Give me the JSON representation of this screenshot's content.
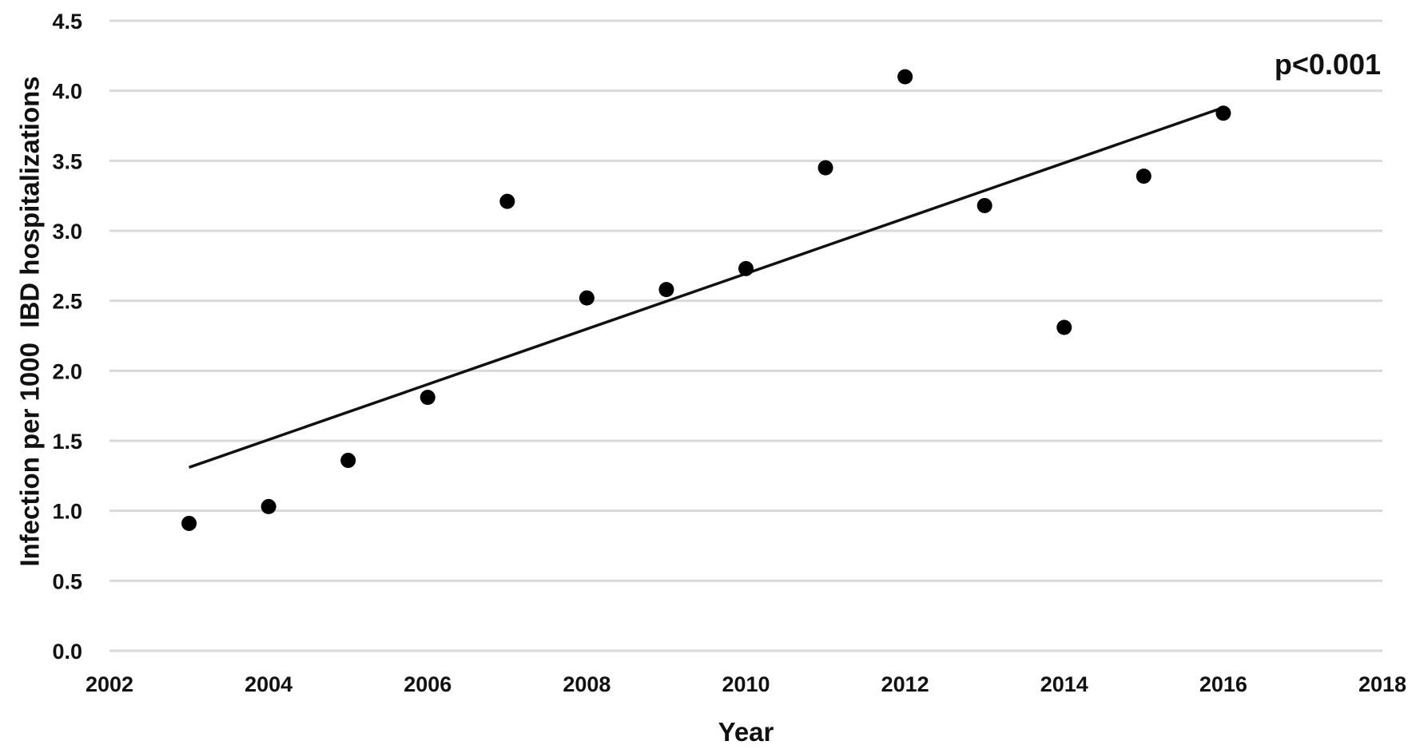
{
  "chart_data": {
    "type": "scatter",
    "title": "",
    "xlabel": "Year",
    "ylabel": "Infection per 1000  IBD hospitalizations",
    "xlim": [
      2002,
      2018
    ],
    "ylim": [
      0.0,
      4.5
    ],
    "x_ticks": [
      "2002",
      "2004",
      "2006",
      "2008",
      "2010",
      "2012",
      "2014",
      "2016",
      "2018"
    ],
    "y_ticks": [
      "0.0",
      "0.5",
      "1.0",
      "1.5",
      "2.0",
      "2.5",
      "3.0",
      "3.5",
      "4.0",
      "4.5"
    ],
    "grid": "horizontal",
    "points": [
      {
        "x": 2003,
        "y": 0.91
      },
      {
        "x": 2004,
        "y": 1.03
      },
      {
        "x": 2005,
        "y": 1.36
      },
      {
        "x": 2006,
        "y": 1.81
      },
      {
        "x": 2007,
        "y": 3.21
      },
      {
        "x": 2008,
        "y": 2.52
      },
      {
        "x": 2009,
        "y": 2.58
      },
      {
        "x": 2010,
        "y": 2.73
      },
      {
        "x": 2011,
        "y": 3.45
      },
      {
        "x": 2012,
        "y": 4.1
      },
      {
        "x": 2013,
        "y": 3.18
      },
      {
        "x": 2014,
        "y": 2.31
      },
      {
        "x": 2015,
        "y": 3.39
      },
      {
        "x": 2016,
        "y": 3.84
      }
    ],
    "trendline": {
      "type": "linear",
      "x_start": 2003,
      "y_start": 1.31,
      "x_end": 2016,
      "y_end": 3.88
    },
    "annotation": "p<0.001",
    "colors": {
      "points": "#000000",
      "trendline": "#111111",
      "grid": "#d9d9d9",
      "text": "#111111"
    }
  }
}
